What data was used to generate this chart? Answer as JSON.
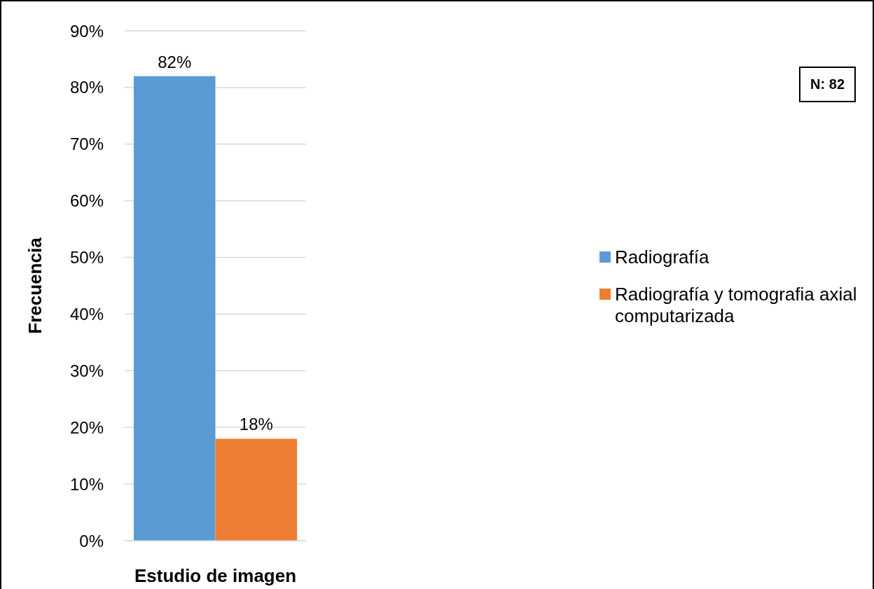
{
  "chart_data": {
    "type": "bar",
    "categories": [
      null
    ],
    "xlabel": "Estudio de imagen",
    "ylabel": "Frecuencia",
    "series": [
      {
        "name": "Radiografía",
        "color": "#5b9bd5",
        "values": [
          82
        ],
        "value_labels": [
          "82%"
        ]
      },
      {
        "name": "Radiografía y tomografia axial computarizada",
        "color": "#ed7d31",
        "values": [
          18
        ],
        "value_labels": [
          "18%"
        ]
      }
    ],
    "ylim": [
      0,
      90
    ],
    "yticks": [
      {
        "value": 0,
        "label": "0%"
      },
      {
        "value": 10,
        "label": "10%"
      },
      {
        "value": 20,
        "label": "20%"
      },
      {
        "value": 30,
        "label": "30%"
      },
      {
        "value": 40,
        "label": "40%"
      },
      {
        "value": 50,
        "label": "50%"
      },
      {
        "value": 60,
        "label": "60%"
      },
      {
        "value": 70,
        "label": "70%"
      },
      {
        "value": 80,
        "label": "80%"
      },
      {
        "value": 90,
        "label": "90%"
      }
    ],
    "grid": "y",
    "legend": "right",
    "annotations": [
      "N: 82"
    ]
  }
}
